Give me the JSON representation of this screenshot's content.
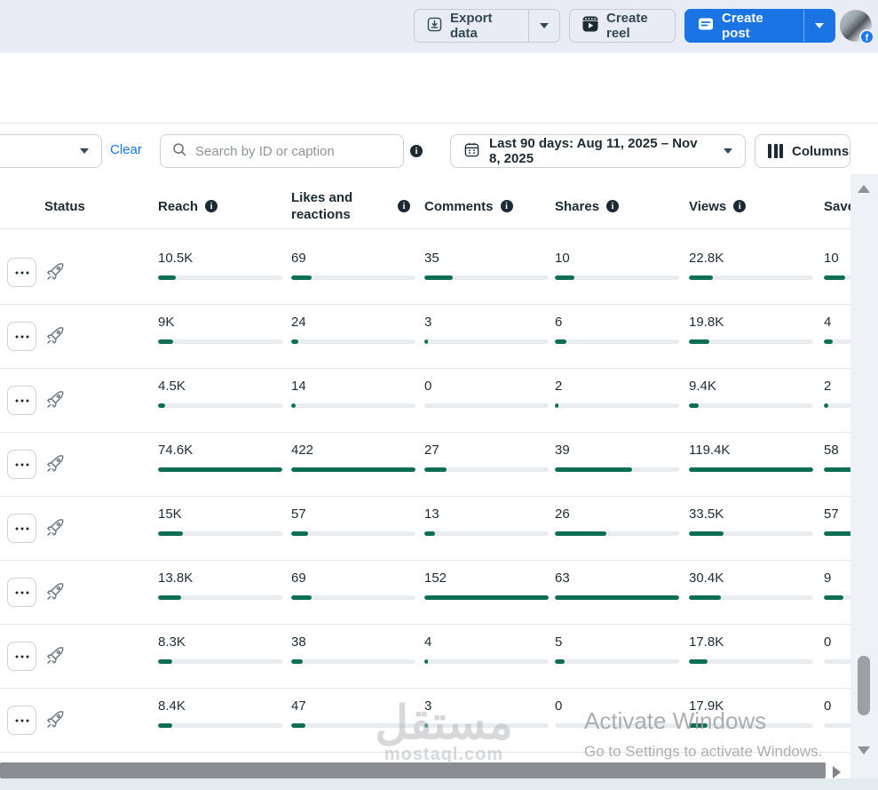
{
  "topbar": {
    "export_label": "Export data",
    "create_reel_label": "Create reel",
    "create_post_label": "Create post"
  },
  "filters": {
    "clear_label": "Clear",
    "search_placeholder": "Search by ID or caption",
    "date_range_label": "Last 90 days: Aug 11, 2025 – Nov 8, 2025",
    "columns_label": "Columns"
  },
  "table": {
    "status_header": "Status",
    "metric_headers": [
      "Reach",
      "Likes and reactions",
      "Comments",
      "Shares",
      "Views",
      "Saves"
    ],
    "rows": [
      [
        "10.5K",
        "69",
        "35",
        "10",
        "22.8K",
        "10"
      ],
      [
        "9K",
        "24",
        "3",
        "6",
        "19.8K",
        "4"
      ],
      [
        "4.5K",
        "14",
        "0",
        "2",
        "9.4K",
        "2"
      ],
      [
        "74.6K",
        "422",
        "27",
        "39",
        "119.4K",
        "58"
      ],
      [
        "15K",
        "57",
        "13",
        "26",
        "33.5K",
        "57"
      ],
      [
        "13.8K",
        "69",
        "152",
        "63",
        "30.4K",
        "9"
      ],
      [
        "8.3K",
        "38",
        "4",
        "5",
        "17.8K",
        "0"
      ],
      [
        "8.4K",
        "47",
        "3",
        "0",
        "17.9K",
        "0"
      ]
    ]
  },
  "watermark": {
    "arabic": "مستقل",
    "domain": "mostaql.com"
  },
  "os_overlay": {
    "line1": "Activate Windows",
    "line2": "Go to Settings to activate Windows."
  },
  "colors": {
    "accent_blue": "#1b74e4",
    "bar_green": "#0f6f55",
    "header_text": "#1c2b33",
    "topbar_bg": "#e9ecf4"
  }
}
